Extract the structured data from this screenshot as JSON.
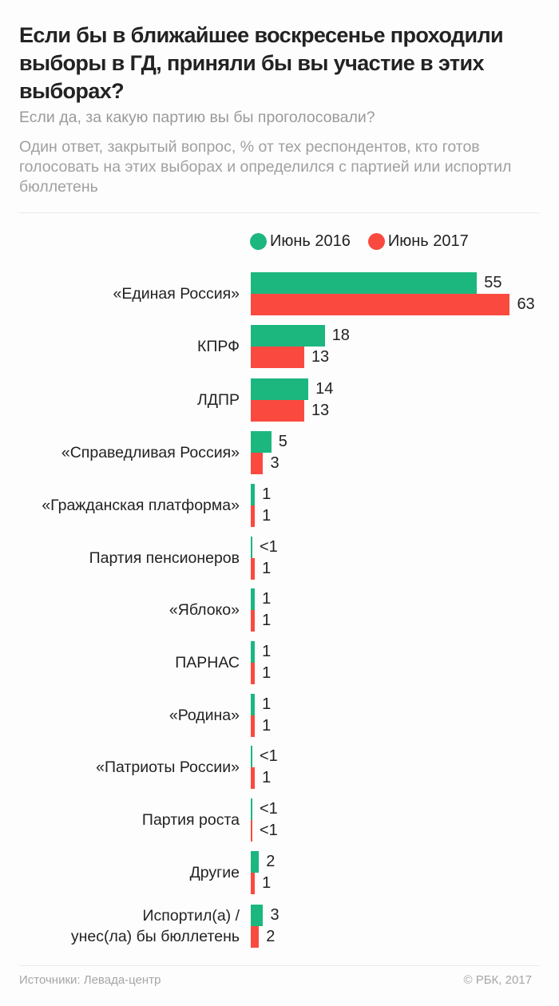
{
  "header": {
    "title": "Если бы в ближайшее воскресенье проходили выборы в ГД, приняли бы вы участие в этих выборах?",
    "subtitle": "Если да, за какую партию вы бы проголосовали?",
    "note": "Один ответ, закрытый вопрос, % от тех респондентов, кто готов голосовать на этих выборах и определился с партией или испортил бюллетень"
  },
  "legend": [
    {
      "label": "Июнь 2016",
      "color": "#1bb77f"
    },
    {
      "label": "Июнь 2017",
      "color": "#fa4a3f"
    }
  ],
  "footer": {
    "source": "Источники: Левада-центр",
    "copyright": "© РБК, 2017"
  },
  "chart_data": {
    "type": "bar",
    "orientation": "horizontal",
    "title": "Если бы в ближайшее воскресенье проходили выборы в ГД, приняли бы вы участие в этих выборах?",
    "subtitle": "Если да, за какую партию вы бы проголосовали?",
    "xlabel": "",
    "ylabel": "",
    "unit": "%",
    "grid": false,
    "legend_position": "top",
    "categories": [
      "«Единая Россия»",
      "КПРФ",
      "ЛДПР",
      "«Справедливая Россия»",
      "«Гражданская платформа»",
      "Партия пенсионеров",
      "«Яблоко»",
      "ПАРНАС",
      "«Родина»",
      "«Патриоты России»",
      "Партия роста",
      "Другие",
      "Испортил(а) /\nунес(ла) бы бюллетень"
    ],
    "series": [
      {
        "name": "Июнь 2016",
        "color": "#1bb77f",
        "values": [
          55,
          18,
          14,
          5,
          1,
          0.3,
          1,
          1,
          1,
          0.3,
          0.3,
          2,
          3
        ],
        "labels": [
          "55",
          "18",
          "14",
          "5",
          "1",
          "<1",
          "1",
          "1",
          "1",
          "<1",
          "<1",
          "2",
          "3"
        ]
      },
      {
        "name": "Июнь 2017",
        "color": "#fa4a3f",
        "values": [
          63,
          13,
          13,
          3,
          1,
          1,
          1,
          1,
          1,
          1,
          0.3,
          1,
          2
        ],
        "labels": [
          "63",
          "13",
          "13",
          "3",
          "1",
          "1",
          "1",
          "1",
          "1",
          "1",
          "<1",
          "1",
          "2"
        ]
      }
    ],
    "source": "Источники: Левада-центр"
  }
}
